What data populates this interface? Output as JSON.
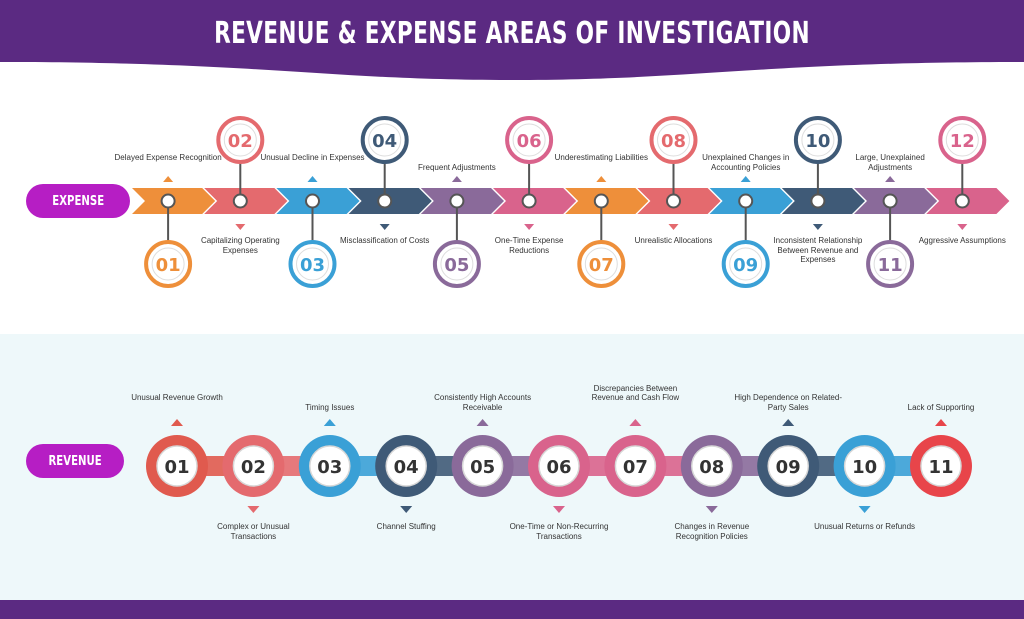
{
  "title": "REVENUE & EXPENSE AREAS OF INVESTIGATION",
  "colors": {
    "header": "#5b2a82",
    "footer": "#5b2a82",
    "pill": "#b61ec4",
    "revenue_bg": "#eef8fa"
  },
  "expense": {
    "pill_label": "EXPENSE",
    "steps": [
      {
        "num": "01",
        "label": "Delayed Expense Recognition",
        "color": "#ee8f3a"
      },
      {
        "num": "02",
        "label": "Capitalizing Operating Expenses",
        "color": "#e46a6e"
      },
      {
        "num": "03",
        "label": "Unusual Decline in Expenses",
        "color": "#3aa0d6"
      },
      {
        "num": "04",
        "label": "Misclassification of Costs",
        "color": "#3f5a77"
      },
      {
        "num": "05",
        "label": "Frequent Adjustments",
        "color": "#8a6a9a"
      },
      {
        "num": "06",
        "label": "One-Time Expense Reductions",
        "color": "#d9638c"
      },
      {
        "num": "07",
        "label": "Underestimating Liabilities",
        "color": "#ee8f3a"
      },
      {
        "num": "08",
        "label": "Unrealistic Allocations",
        "color": "#e46a6e"
      },
      {
        "num": "09",
        "label": "Unexplained Changes in Accounting Policies",
        "color": "#3aa0d6"
      },
      {
        "num": "10",
        "label": "Inconsistent Relationship Between Revenue and Expenses",
        "color": "#3f5a77"
      },
      {
        "num": "11",
        "label": "Large, Unexplained Adjustments",
        "color": "#8a6a9a"
      },
      {
        "num": "12",
        "label": "Aggressive Assumptions",
        "color": "#d9638c"
      }
    ]
  },
  "revenue": {
    "pill_label": "REVENUE",
    "steps": [
      {
        "num": "01",
        "label": "Unusual Revenue Growth",
        "color": "#e05a4e"
      },
      {
        "num": "02",
        "label": "Complex or Unusual Transactions",
        "color": "#e46a6e"
      },
      {
        "num": "03",
        "label": "Timing Issues",
        "color": "#3aa0d6"
      },
      {
        "num": "04",
        "label": "Channel Stuffing",
        "color": "#3f5a77"
      },
      {
        "num": "05",
        "label": "Consistently High Accounts Receivable",
        "color": "#8a6a9a"
      },
      {
        "num": "06",
        "label": "One-Time or Non-Recurring Transactions",
        "color": "#d9638c"
      },
      {
        "num": "07",
        "label": "Discrepancies Between Revenue and Cash Flow",
        "color": "#d9638c"
      },
      {
        "num": "08",
        "label": "Changes in Revenue Recognition Policies",
        "color": "#8a6a9a"
      },
      {
        "num": "09",
        "label": "High Dependence on Related-Party Sales",
        "color": "#3f5a77"
      },
      {
        "num": "10",
        "label": "Unusual Returns or Refunds",
        "color": "#3aa0d6"
      },
      {
        "num": "11",
        "label": "Lack of Supporting",
        "color": "#e8454a"
      }
    ]
  }
}
